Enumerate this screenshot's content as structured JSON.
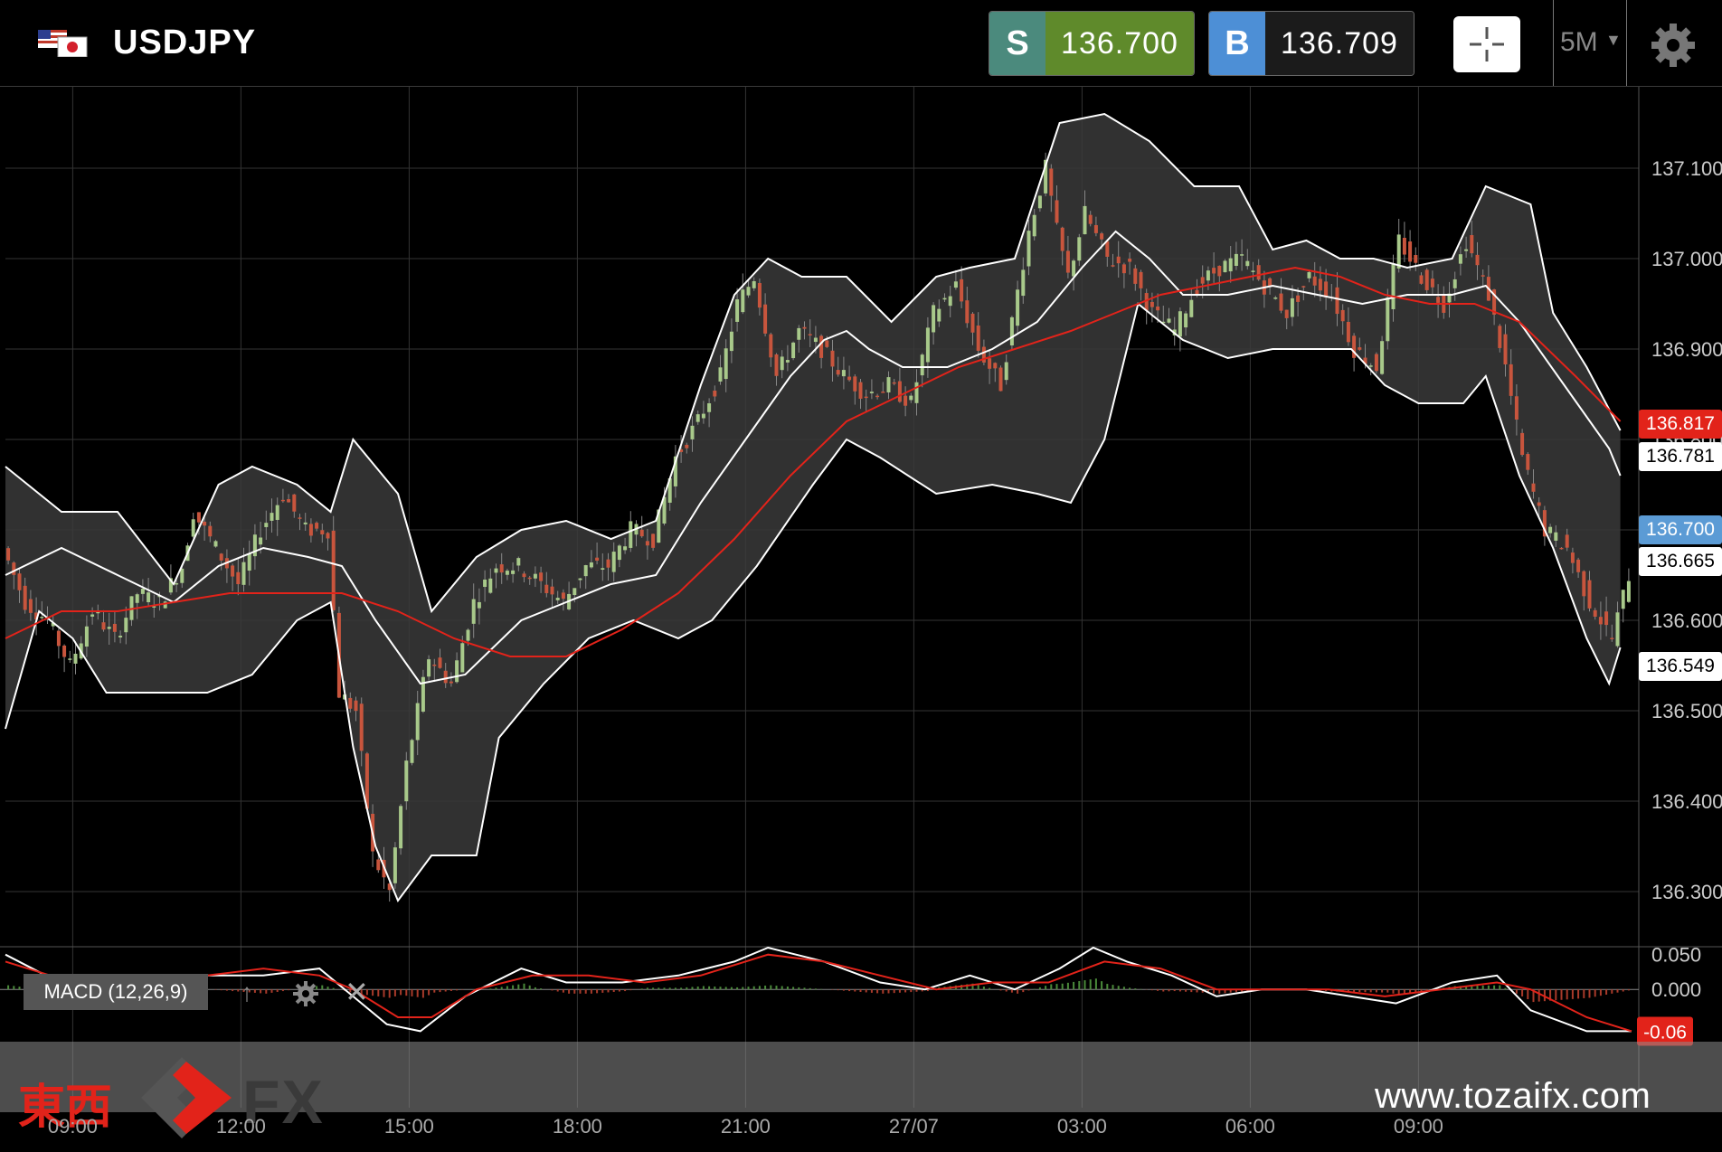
{
  "header": {
    "symbol": "USDJPY",
    "sell": {
      "tag": "S",
      "price": "136.700"
    },
    "buy": {
      "tag": "B",
      "price": "136.709"
    },
    "timeframe": "5M"
  },
  "chart_data": {
    "type": "candlestick",
    "instrument": "USDJPY",
    "indicators": [
      "Bollinger Bands",
      "Moving Average",
      "MACD (12,26,9)"
    ],
    "x_ticks": [
      "09:00",
      "12:00",
      "15:00",
      "18:00",
      "21:00",
      "27/07",
      "03:00",
      "06:00",
      "09:00"
    ],
    "y_ticks": [
      "137.100",
      "137.000",
      "136.900",
      "136.800",
      "136.700",
      "136.600",
      "136.500",
      "136.400",
      "136.300"
    ],
    "ylim": [
      136.24,
      137.19
    ],
    "price_markers": [
      {
        "label": "136.817",
        "value": 136.817,
        "bg": "#e2231a",
        "fg": "#ffffff"
      },
      {
        "label": "136.781",
        "value": 136.781,
        "bg": "#ffffff",
        "fg": "#000000"
      },
      {
        "label": "136.700",
        "value": 136.7,
        "bg": "#5b9bd5",
        "fg": "#ffffff"
      },
      {
        "label": "136.665",
        "value": 136.665,
        "bg": "#ffffff",
        "fg": "#000000"
      },
      {
        "label": "136.549",
        "value": 136.549,
        "bg": "#ffffff",
        "fg": "#000000"
      }
    ],
    "price_path": [
      [
        0,
        136.68
      ],
      [
        4,
        136.62
      ],
      [
        8,
        136.6
      ],
      [
        12,
        136.55
      ],
      [
        16,
        136.61
      ],
      [
        20,
        136.58
      ],
      [
        24,
        136.63
      ],
      [
        28,
        136.62
      ],
      [
        32,
        136.66
      ],
      [
        34,
        136.72
      ],
      [
        38,
        136.68
      ],
      [
        42,
        136.64
      ],
      [
        46,
        136.7
      ],
      [
        50,
        136.74
      ],
      [
        54,
        136.7
      ],
      [
        58,
        136.7
      ],
      [
        60,
        136.52
      ],
      [
        63,
        136.5
      ],
      [
        66,
        136.34
      ],
      [
        69,
        136.3
      ],
      [
        72,
        136.44
      ],
      [
        76,
        136.56
      ],
      [
        80,
        136.53
      ],
      [
        84,
        136.62
      ],
      [
        88,
        136.66
      ],
      [
        92,
        136.66
      ],
      [
        96,
        136.64
      ],
      [
        100,
        136.62
      ],
      [
        104,
        136.66
      ],
      [
        108,
        136.66
      ],
      [
        112,
        136.7
      ],
      [
        116,
        136.69
      ],
      [
        120,
        136.78
      ],
      [
        124,
        136.82
      ],
      [
        128,
        136.87
      ],
      [
        131,
        136.95
      ],
      [
        134,
        136.98
      ],
      [
        138,
        136.87
      ],
      [
        142,
        136.92
      ],
      [
        146,
        136.9
      ],
      [
        150,
        136.87
      ],
      [
        154,
        136.85
      ],
      [
        158,
        136.86
      ],
      [
        162,
        136.84
      ],
      [
        166,
        136.94
      ],
      [
        170,
        136.97
      ],
      [
        174,
        136.9
      ],
      [
        178,
        136.86
      ],
      [
        180,
        136.93
      ],
      [
        183,
        137.03
      ],
      [
        186,
        137.1
      ],
      [
        188,
        137.03
      ],
      [
        190,
        136.98
      ],
      [
        193,
        137.05
      ],
      [
        197,
        137.0
      ],
      [
        201,
        136.99
      ],
      [
        205,
        136.94
      ],
      [
        209,
        136.92
      ],
      [
        213,
        136.97
      ],
      [
        217,
        136.99
      ],
      [
        221,
        137.0
      ],
      [
        225,
        136.97
      ],
      [
        229,
        136.94
      ],
      [
        233,
        136.98
      ],
      [
        237,
        136.96
      ],
      [
        241,
        136.9
      ],
      [
        245,
        136.88
      ],
      [
        249,
        137.02
      ],
      [
        253,
        136.98
      ],
      [
        257,
        136.95
      ],
      [
        261,
        137.02
      ],
      [
        265,
        136.96
      ],
      [
        268,
        136.88
      ],
      [
        271,
        136.78
      ],
      [
        275,
        136.7
      ],
      [
        279,
        136.68
      ],
      [
        283,
        136.62
      ],
      [
        287,
        136.58
      ],
      [
        290,
        136.65
      ]
    ],
    "bollinger_upper": [
      [
        0,
        136.77
      ],
      [
        10,
        136.72
      ],
      [
        20,
        136.72
      ],
      [
        30,
        136.64
      ],
      [
        38,
        136.75
      ],
      [
        44,
        136.77
      ],
      [
        52,
        136.75
      ],
      [
        58,
        136.72
      ],
      [
        62,
        136.8
      ],
      [
        66,
        136.77
      ],
      [
        70,
        136.74
      ],
      [
        76,
        136.61
      ],
      [
        84,
        136.67
      ],
      [
        92,
        136.7
      ],
      [
        100,
        136.71
      ],
      [
        108,
        136.69
      ],
      [
        116,
        136.71
      ],
      [
        124,
        136.86
      ],
      [
        130,
        136.96
      ],
      [
        136,
        137.0
      ],
      [
        142,
        136.98
      ],
      [
        150,
        136.98
      ],
      [
        158,
        136.93
      ],
      [
        166,
        136.98
      ],
      [
        172,
        136.99
      ],
      [
        180,
        137.0
      ],
      [
        188,
        137.15
      ],
      [
        196,
        137.16
      ],
      [
        204,
        137.13
      ],
      [
        212,
        137.08
      ],
      [
        220,
        137.08
      ],
      [
        226,
        137.01
      ],
      [
        232,
        137.02
      ],
      [
        238,
        137.0
      ],
      [
        244,
        137.0
      ],
      [
        250,
        136.99
      ],
      [
        258,
        137.0
      ],
      [
        264,
        137.08
      ],
      [
        268,
        137.07
      ],
      [
        272,
        137.06
      ],
      [
        276,
        136.94
      ],
      [
        282,
        136.88
      ],
      [
        288,
        136.81
      ]
    ],
    "bollinger_middle": [
      [
        0,
        136.65
      ],
      [
        10,
        136.68
      ],
      [
        20,
        136.65
      ],
      [
        30,
        136.62
      ],
      [
        38,
        136.66
      ],
      [
        46,
        136.68
      ],
      [
        54,
        136.67
      ],
      [
        60,
        136.66
      ],
      [
        66,
        136.6
      ],
      [
        74,
        136.53
      ],
      [
        82,
        136.54
      ],
      [
        92,
        136.6
      ],
      [
        100,
        136.62
      ],
      [
        108,
        136.64
      ],
      [
        116,
        136.65
      ],
      [
        124,
        136.73
      ],
      [
        132,
        136.8
      ],
      [
        140,
        136.87
      ],
      [
        146,
        136.91
      ],
      [
        150,
        136.92
      ],
      [
        154,
        136.9
      ],
      [
        160,
        136.88
      ],
      [
        168,
        136.88
      ],
      [
        176,
        136.9
      ],
      [
        184,
        136.93
      ],
      [
        192,
        136.99
      ],
      [
        198,
        137.03
      ],
      [
        204,
        137.0
      ],
      [
        210,
        136.96
      ],
      [
        218,
        136.96
      ],
      [
        226,
        136.97
      ],
      [
        234,
        136.96
      ],
      [
        242,
        136.95
      ],
      [
        250,
        136.96
      ],
      [
        258,
        136.96
      ],
      [
        264,
        136.97
      ],
      [
        270,
        136.93
      ],
      [
        278,
        136.86
      ],
      [
        286,
        136.79
      ],
      [
        288,
        136.76
      ]
    ],
    "bollinger_lower": [
      [
        0,
        136.48
      ],
      [
        6,
        136.61
      ],
      [
        12,
        136.58
      ],
      [
        18,
        136.52
      ],
      [
        26,
        136.52
      ],
      [
        36,
        136.52
      ],
      [
        44,
        136.54
      ],
      [
        52,
        136.6
      ],
      [
        58,
        136.62
      ],
      [
        62,
        136.46
      ],
      [
        66,
        136.35
      ],
      [
        70,
        136.29
      ],
      [
        76,
        136.34
      ],
      [
        84,
        136.34
      ],
      [
        88,
        136.47
      ],
      [
        96,
        136.53
      ],
      [
        104,
        136.58
      ],
      [
        112,
        136.6
      ],
      [
        120,
        136.58
      ],
      [
        126,
        136.6
      ],
      [
        134,
        136.66
      ],
      [
        144,
        136.75
      ],
      [
        150,
        136.8
      ],
      [
        156,
        136.78
      ],
      [
        166,
        136.74
      ],
      [
        176,
        136.75
      ],
      [
        184,
        136.74
      ],
      [
        190,
        136.73
      ],
      [
        196,
        136.8
      ],
      [
        202,
        136.95
      ],
      [
        210,
        136.91
      ],
      [
        218,
        136.89
      ],
      [
        226,
        136.9
      ],
      [
        232,
        136.9
      ],
      [
        240,
        136.9
      ],
      [
        246,
        136.86
      ],
      [
        252,
        136.84
      ],
      [
        260,
        136.84
      ],
      [
        264,
        136.87
      ],
      [
        270,
        136.76
      ],
      [
        276,
        136.68
      ],
      [
        282,
        136.58
      ],
      [
        286,
        136.53
      ],
      [
        288,
        136.57
      ]
    ],
    "moving_average": [
      [
        0,
        136.58
      ],
      [
        10,
        136.61
      ],
      [
        20,
        136.61
      ],
      [
        30,
        136.62
      ],
      [
        40,
        136.63
      ],
      [
        50,
        136.63
      ],
      [
        60,
        136.63
      ],
      [
        70,
        136.61
      ],
      [
        80,
        136.58
      ],
      [
        90,
        136.56
      ],
      [
        100,
        136.56
      ],
      [
        110,
        136.59
      ],
      [
        120,
        136.63
      ],
      [
        130,
        136.69
      ],
      [
        140,
        136.76
      ],
      [
        150,
        136.82
      ],
      [
        160,
        136.85
      ],
      [
        170,
        136.88
      ],
      [
        180,
        136.9
      ],
      [
        190,
        136.92
      ],
      [
        198,
        136.94
      ],
      [
        206,
        136.96
      ],
      [
        214,
        136.97
      ],
      [
        222,
        136.98
      ],
      [
        230,
        136.99
      ],
      [
        238,
        136.98
      ],
      [
        246,
        136.96
      ],
      [
        254,
        136.95
      ],
      [
        262,
        136.95
      ],
      [
        270,
        136.93
      ],
      [
        280,
        136.87
      ],
      [
        288,
        136.82
      ]
    ],
    "macd": {
      "label": "MACD (12,26,9)",
      "y_ticks": [
        "0.050",
        "0.000"
      ],
      "value_tag": "-0.06",
      "ylim": [
        -0.075,
        0.06
      ],
      "macd_line": [
        [
          0,
          0.05
        ],
        [
          12,
          0.0
        ],
        [
          24,
          0.01
        ],
        [
          36,
          0.02
        ],
        [
          46,
          0.02
        ],
        [
          56,
          0.03
        ],
        [
          62,
          -0.01
        ],
        [
          68,
          -0.05
        ],
        [
          74,
          -0.06
        ],
        [
          82,
          -0.01
        ],
        [
          92,
          0.03
        ],
        [
          100,
          0.01
        ],
        [
          110,
          0.01
        ],
        [
          120,
          0.02
        ],
        [
          130,
          0.04
        ],
        [
          136,
          0.06
        ],
        [
          146,
          0.04
        ],
        [
          156,
          0.01
        ],
        [
          164,
          0.0
        ],
        [
          172,
          0.02
        ],
        [
          180,
          0.0
        ],
        [
          188,
          0.03
        ],
        [
          194,
          0.06
        ],
        [
          200,
          0.04
        ],
        [
          208,
          0.02
        ],
        [
          216,
          -0.01
        ],
        [
          224,
          0.0
        ],
        [
          232,
          0.0
        ],
        [
          240,
          -0.01
        ],
        [
          248,
          -0.02
        ],
        [
          258,
          0.01
        ],
        [
          266,
          0.02
        ],
        [
          272,
          -0.03
        ],
        [
          282,
          -0.06
        ],
        [
          290,
          -0.06
        ]
      ],
      "signal_line": [
        [
          0,
          0.04
        ],
        [
          12,
          0.01
        ],
        [
          24,
          0.01
        ],
        [
          36,
          0.02
        ],
        [
          46,
          0.03
        ],
        [
          56,
          0.02
        ],
        [
          62,
          0.0
        ],
        [
          70,
          -0.04
        ],
        [
          76,
          -0.04
        ],
        [
          84,
          0.0
        ],
        [
          94,
          0.02
        ],
        [
          104,
          0.02
        ],
        [
          114,
          0.01
        ],
        [
          124,
          0.02
        ],
        [
          136,
          0.05
        ],
        [
          146,
          0.04
        ],
        [
          156,
          0.02
        ],
        [
          166,
          0.0
        ],
        [
          176,
          0.01
        ],
        [
          186,
          0.01
        ],
        [
          196,
          0.04
        ],
        [
          206,
          0.03
        ],
        [
          216,
          0.0
        ],
        [
          226,
          0.0
        ],
        [
          236,
          0.0
        ],
        [
          246,
          -0.01
        ],
        [
          256,
          0.0
        ],
        [
          266,
          0.01
        ],
        [
          272,
          0.0
        ],
        [
          282,
          -0.04
        ],
        [
          290,
          -0.06
        ]
      ]
    }
  },
  "watermark": {
    "brand_kanji": "東西",
    "brand_fx": "FX",
    "url": "www.tozaifx.com"
  },
  "icons": {
    "settings": "gear-icon",
    "crosshair": "crosshair-icon",
    "macd_up": "arrow-up-icon",
    "macd_settings": "gear-icon",
    "macd_close": "close-icon"
  }
}
